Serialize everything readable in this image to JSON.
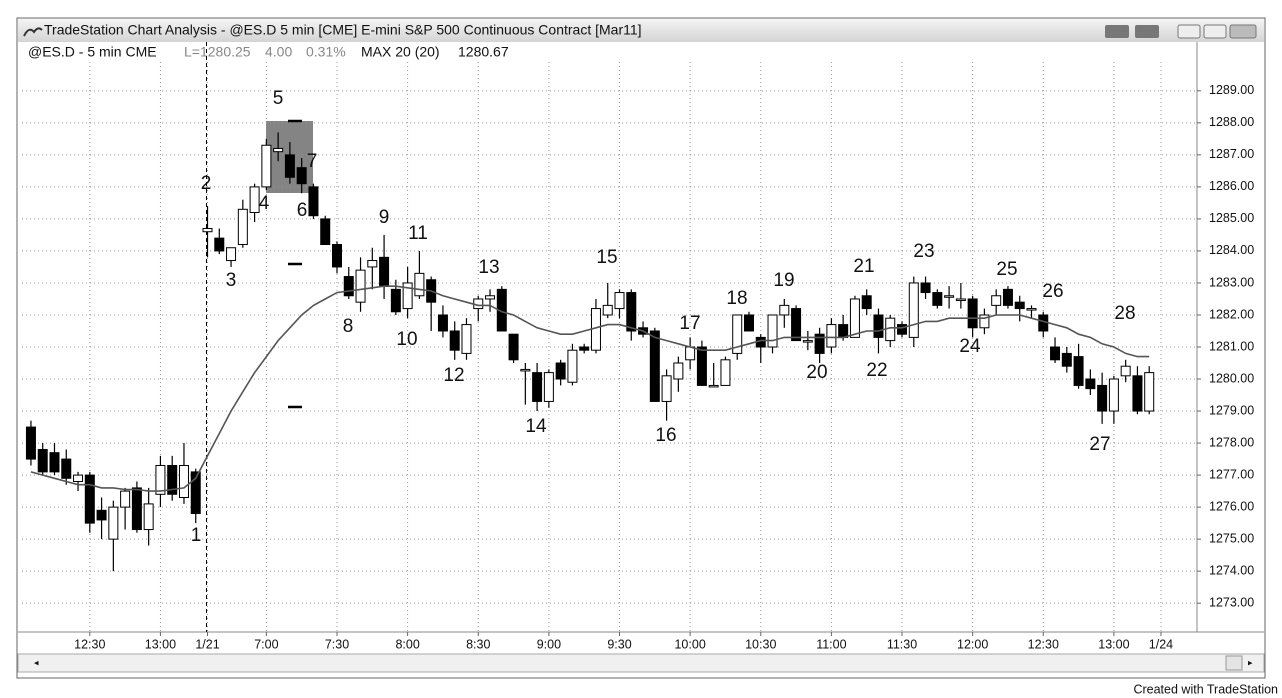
{
  "chart_data": {
    "type": "candlestick",
    "title": "TradeStation Chart Analysis - @ES.D 5 min [CME] E-mini S&P 500 Continuous Contract [Mar11]",
    "symbol": "@ES.D - 5 min CME",
    "last": "L=1280.25",
    "change": "4.00",
    "change_pct": "0.31%",
    "indicator_value": "1280.67",
    "up_color": "#ffffff",
    "down_color": "#000000",
    "open": [
      1278.5,
      1277.8,
      1277.7,
      1277.5,
      1276.8,
      1277.0,
      1275.9,
      1275.0,
      1276.0,
      1276.6,
      1275.3,
      1276.4,
      1277.3,
      1276.3,
      1277.1,
      1284.6,
      1284.4,
      1283.7,
      1284.2,
      1285.2,
      1286.0,
      1287.1,
      1287.0,
      1286.6,
      1286.0,
      1285.0,
      1284.2,
      1283.2,
      1282.4,
      1283.5,
      1283.8,
      1282.8,
      1282.2,
      1282.6,
      1283.1,
      1282.0,
      1281.5,
      1280.8,
      1282.2,
      1282.5,
      1282.8,
      1281.4,
      1280.3,
      1280.2,
      1279.3,
      1280.5,
      1279.9,
      1281.0,
      1280.9,
      1282.0,
      1282.2,
      1282.7,
      1281.6,
      1281.5,
      1279.3,
      1280.0,
      1280.6,
      1281.0,
      1279.8,
      1279.8,
      1280.8,
      1282.0,
      1281.3,
      1281.0,
      1282.0,
      1282.2,
      1281.2,
      1281.4,
      1281.0,
      1281.7,
      1281.3,
      1282.6,
      1282.0,
      1281.2,
      1281.7,
      1281.3,
      1283.0,
      1282.7,
      1282.6,
      1282.5,
      1282.5,
      1281.6,
      1282.3,
      1282.8,
      1282.4,
      1282.2,
      1282.0,
      1281.0,
      1280.8,
      1280.7,
      1280.0,
      1279.8,
      1279.0,
      1280.1,
      1280.1,
      1279.0
    ],
    "high": [
      1278.7,
      1278.0,
      1278.0,
      1277.8,
      1277.1,
      1277.1,
      1276.3,
      1276.2,
      1276.6,
      1276.8,
      1276.6,
      1277.6,
      1277.6,
      1278.0,
      1277.2,
      1285.4,
      1284.7,
      1284.1,
      1285.6,
      1286.1,
      1287.5,
      1287.7,
      1287.4,
      1286.9,
      1286.1,
      1285.1,
      1284.3,
      1283.5,
      1283.8,
      1284.1,
      1284.5,
      1283.1,
      1283.5,
      1284.0,
      1283.2,
      1282.3,
      1281.8,
      1281.9,
      1282.6,
      1282.8,
      1282.9,
      1281.4,
      1280.5,
      1280.5,
      1280.3,
      1280.6,
      1281.1,
      1281.1,
      1282.5,
      1283.0,
      1282.8,
      1282.8,
      1281.8,
      1281.6,
      1280.3,
      1280.7,
      1281.3,
      1281.2,
      1280.5,
      1280.7,
      1282.0,
      1282.1,
      1281.4,
      1282.0,
      1282.5,
      1282.3,
      1281.5,
      1281.6,
      1281.9,
      1282.0,
      1282.6,
      1282.8,
      1282.2,
      1282.0,
      1281.8,
      1283.2,
      1283.2,
      1282.8,
      1282.9,
      1283.0,
      1282.6,
      1282.2,
      1282.8,
      1282.9,
      1282.6,
      1282.3,
      1282.1,
      1281.3,
      1281.0,
      1281.1,
      1280.3,
      1280.2,
      1280.1,
      1280.6,
      1280.4,
      1280.4
    ],
    "low": [
      1277.3,
      1277.0,
      1277.0,
      1276.7,
      1276.5,
      1275.2,
      1275.0,
      1274.0,
      1275.3,
      1275.2,
      1274.8,
      1276.0,
      1276.2,
      1276.1,
      1275.5,
      1283.8,
      1283.9,
      1283.5,
      1284.1,
      1284.9,
      1285.9,
      1286.8,
      1286.1,
      1285.8,
      1285.0,
      1284.2,
      1283.3,
      1282.5,
      1282.1,
      1282.8,
      1282.5,
      1282.0,
      1281.9,
      1282.5,
      1281.5,
      1281.3,
      1280.6,
      1280.6,
      1281.8,
      1282.1,
      1281.5,
      1280.5,
      1279.2,
      1279.0,
      1279.1,
      1279.8,
      1279.8,
      1280.8,
      1280.8,
      1281.9,
      1281.9,
      1281.2,
      1281.3,
      1279.3,
      1278.7,
      1279.6,
      1280.3,
      1279.8,
      1279.8,
      1279.8,
      1280.6,
      1281.5,
      1280.5,
      1280.8,
      1281.6,
      1281.2,
      1280.9,
      1280.5,
      1280.8,
      1281.2,
      1281.3,
      1282.0,
      1280.8,
      1281.0,
      1281.3,
      1281.0,
      1282.5,
      1282.2,
      1282.2,
      1282.2,
      1281.3,
      1281.4,
      1282.0,
      1282.2,
      1281.8,
      1281.9,
      1281.3,
      1280.5,
      1280.2,
      1279.7,
      1279.5,
      1278.6,
      1278.6,
      1279.9,
      1278.9,
      1278.9
    ],
    "close": [
      1277.5,
      1277.1,
      1277.1,
      1276.9,
      1277.0,
      1275.5,
      1275.6,
      1276.0,
      1276.5,
      1275.3,
      1276.1,
      1277.3,
      1276.4,
      1277.3,
      1275.8,
      1284.7,
      1284.0,
      1284.1,
      1285.3,
      1286.0,
      1287.3,
      1287.2,
      1286.3,
      1286.1,
      1285.1,
      1284.2,
      1283.5,
      1282.6,
      1283.4,
      1283.7,
      1282.9,
      1282.1,
      1283.0,
      1283.3,
      1282.4,
      1281.5,
      1280.9,
      1281.7,
      1282.5,
      1282.6,
      1281.5,
      1280.6,
      1280.3,
      1279.3,
      1280.2,
      1280.0,
      1280.9,
      1280.9,
      1282.2,
      1282.3,
      1282.7,
      1281.5,
      1281.4,
      1279.3,
      1280.1,
      1280.5,
      1281.0,
      1279.8,
      1279.8,
      1280.6,
      1282.0,
      1281.5,
      1281.0,
      1282.0,
      1282.3,
      1281.2,
      1281.2,
      1280.8,
      1281.7,
      1281.3,
      1282.5,
      1282.2,
      1281.3,
      1281.9,
      1281.4,
      1283.0,
      1282.7,
      1282.3,
      1282.6,
      1282.5,
      1281.6,
      1282.0,
      1282.6,
      1282.3,
      1282.2,
      1282.2,
      1281.5,
      1280.6,
      1280.4,
      1279.8,
      1279.7,
      1279.0,
      1280.0,
      1280.4,
      1279.0,
      1280.2
    ],
    "ma": {
      "name": "MAX 20 (20)",
      "color": "#555555",
      "values": [
        1277.1,
        1277.0,
        1276.9,
        1276.8,
        1276.7,
        1276.7,
        1276.6,
        1276.6,
        1276.55,
        1276.55,
        1276.5,
        1276.5,
        1276.55,
        1276.6,
        1276.9,
        1277.6,
        1278.3,
        1279.0,
        1279.6,
        1280.2,
        1280.7,
        1281.2,
        1281.6,
        1282.0,
        1282.3,
        1282.5,
        1282.7,
        1282.75,
        1282.8,
        1282.85,
        1282.9,
        1282.9,
        1282.85,
        1282.8,
        1282.75,
        1282.6,
        1282.5,
        1282.4,
        1282.3,
        1282.3,
        1282.1,
        1282.0,
        1281.8,
        1281.6,
        1281.5,
        1281.4,
        1281.4,
        1281.5,
        1281.6,
        1281.7,
        1281.7,
        1281.6,
        1281.5,
        1281.3,
        1281.2,
        1281.1,
        1281.0,
        1280.9,
        1280.9,
        1280.9,
        1281.0,
        1281.1,
        1281.2,
        1281.2,
        1281.3,
        1281.3,
        1281.3,
        1281.3,
        1281.3,
        1281.3,
        1281.4,
        1281.5,
        1281.5,
        1281.6,
        1281.6,
        1281.7,
        1281.8,
        1281.8,
        1281.9,
        1281.9,
        1281.9,
        1281.9,
        1282.0,
        1282.0,
        1282.0,
        1281.9,
        1281.8,
        1281.7,
        1281.6,
        1281.4,
        1281.3,
        1281.1,
        1281.0,
        1280.8,
        1280.7,
        1280.7
      ]
    },
    "ylim": [
      1272.1,
      1289.9
    ],
    "yticks": [
      {
        "value": 1273,
        "label": "1273.00"
      },
      {
        "value": 1274,
        "label": "1274.00"
      },
      {
        "value": 1275,
        "label": "1275.00"
      },
      {
        "value": 1276,
        "label": "1276.00"
      },
      {
        "value": 1277,
        "label": "1277.00"
      },
      {
        "value": 1278,
        "label": "1278.00"
      },
      {
        "value": 1279,
        "label": "1279.00"
      },
      {
        "value": 1280,
        "label": "1280.00"
      },
      {
        "value": 1281,
        "label": "1281.00"
      },
      {
        "value": 1282,
        "label": "1282.00"
      },
      {
        "value": 1283,
        "label": "1283.00"
      },
      {
        "value": 1284,
        "label": "1284.00"
      },
      {
        "value": 1285,
        "label": "1285.00"
      },
      {
        "value": 1286,
        "label": "1286.00"
      },
      {
        "value": 1287,
        "label": "1287.00"
      },
      {
        "value": 1288,
        "label": "1288.00"
      },
      {
        "value": 1289,
        "label": "1289.00"
      }
    ],
    "xlim": [
      -0.76,
      99.06
    ],
    "xticks": [
      {
        "value": 5,
        "label": "12:30"
      },
      {
        "value": 11,
        "label": "13:00"
      },
      {
        "value": 15,
        "label": "1/21"
      },
      {
        "value": 20,
        "label": "7:00"
      },
      {
        "value": 26,
        "label": "7:30"
      },
      {
        "value": 32,
        "label": "8:00"
      },
      {
        "value": 38,
        "label": "8:30"
      },
      {
        "value": 44,
        "label": "9:00"
      },
      {
        "value": 50,
        "label": "9:30"
      },
      {
        "value": 56,
        "label": "10:00"
      },
      {
        "value": 62,
        "label": "10:30"
      },
      {
        "value": 68,
        "label": "11:00"
      },
      {
        "value": 74,
        "label": "11:30"
      },
      {
        "value": 80,
        "label": "12:00"
      },
      {
        "value": 86,
        "label": "12:30"
      },
      {
        "value": 92,
        "label": "13:00"
      },
      {
        "value": 96,
        "label": "1/24"
      }
    ],
    "grid": true,
    "annotations": [
      "1",
      "2",
      "3",
      "4",
      "5",
      "6",
      "7",
      "8",
      "9",
      "10",
      "11",
      "12",
      "13",
      "14",
      "15",
      "16",
      "17",
      "18",
      "19",
      "20",
      "21",
      "22",
      "23",
      "24",
      "25",
      "26",
      "27",
      "28"
    ]
  },
  "footer": "Created with TradeStation"
}
